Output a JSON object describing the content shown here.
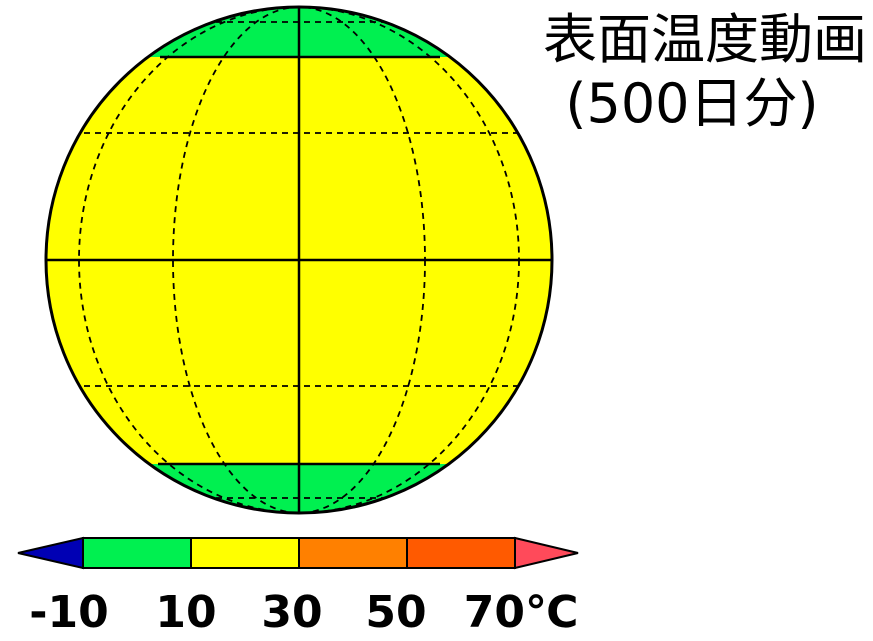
{
  "title": {
    "line1": "表面温度動画",
    "line2": "(500日分)"
  },
  "globe": {
    "zones": [
      {
        "name": "polar-north",
        "color": "#00f050"
      },
      {
        "name": "temperate-tropical",
        "color": "#ffff00"
      },
      {
        "name": "polar-south",
        "color": "#00f050"
      }
    ],
    "grid_style": "dashed"
  },
  "colorbar": {
    "unit": "℃",
    "segments": [
      {
        "from": null,
        "to": -10,
        "color": "#0000b4",
        "kind": "under-arrow"
      },
      {
        "from": -10,
        "to": 10,
        "color": "#00f050"
      },
      {
        "from": 10,
        "to": 30,
        "color": "#ffff00"
      },
      {
        "from": 30,
        "to": 50,
        "color": "#ff8000"
      },
      {
        "from": 50,
        "to": 70,
        "color": "#ff5a00"
      },
      {
        "from": 70,
        "to": null,
        "color": "#ff4a5a",
        "kind": "over-arrow"
      }
    ],
    "tick_labels": [
      "-10",
      "10",
      "30",
      "50",
      "70℃"
    ]
  }
}
